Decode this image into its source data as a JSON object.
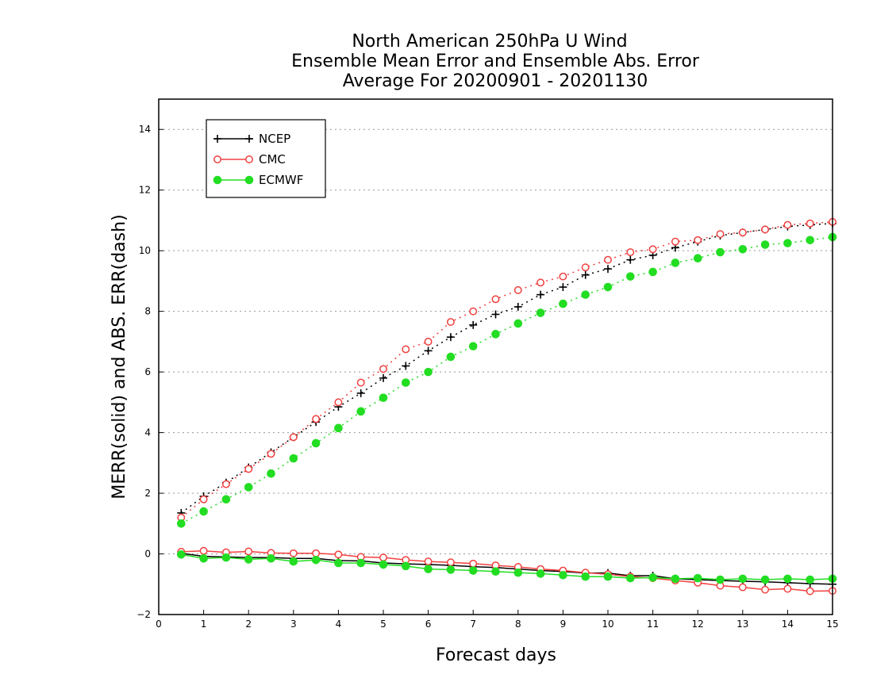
{
  "chart_data": {
    "type": "line",
    "title": [
      "North American 250hPa U Wind",
      "Ensemble Mean Error and Ensemble Abs. Error",
      "Average For 20200901 - 20201130"
    ],
    "xlabel": "Forecast days",
    "ylabel": "MERR(solid) and ABS. ERR(dash)",
    "xlim": [
      0,
      15
    ],
    "ylim": [
      -2,
      15
    ],
    "xticks": [
      0,
      1,
      2,
      3,
      4,
      5,
      6,
      7,
      8,
      9,
      10,
      11,
      12,
      13,
      14,
      15
    ],
    "yticks": [
      -2,
      0,
      2,
      4,
      6,
      8,
      10,
      12,
      14
    ],
    "grid": "horizontal dotted",
    "legend_position": "top-left",
    "x": [
      0.5,
      1,
      1.5,
      2,
      2.5,
      3,
      3.5,
      4,
      4.5,
      5,
      5.5,
      6,
      6.5,
      7,
      7.5,
      8,
      8.5,
      9,
      9.5,
      10,
      10.5,
      11,
      11.5,
      12,
      12.5,
      13,
      13.5,
      14,
      14.5,
      15
    ],
    "series": [
      {
        "name": "NCEP",
        "color": "#000000",
        "marker": "plus",
        "abs_err": [
          1.35,
          1.9,
          2.35,
          2.85,
          3.35,
          3.85,
          4.35,
          4.85,
          5.3,
          5.8,
          6.2,
          6.7,
          7.15,
          7.55,
          7.9,
          8.15,
          8.55,
          8.8,
          9.2,
          9.4,
          9.7,
          9.85,
          10.1,
          10.3,
          10.5,
          10.6,
          10.7,
          10.8,
          10.85,
          10.9
        ],
        "mean_err": [
          0.02,
          -0.08,
          -0.1,
          -0.12,
          -0.12,
          -0.15,
          -0.15,
          -0.22,
          -0.23,
          -0.3,
          -0.33,
          -0.35,
          -0.38,
          -0.42,
          -0.45,
          -0.5,
          -0.55,
          -0.58,
          -0.63,
          -0.63,
          -0.72,
          -0.72,
          -0.82,
          -0.85,
          -0.88,
          -0.9,
          -0.92,
          -0.95,
          -0.98,
          -1.0
        ]
      },
      {
        "name": "CMC",
        "color": "#f04040",
        "marker": "circle-open",
        "abs_err": [
          1.2,
          1.8,
          2.3,
          2.8,
          3.3,
          3.85,
          4.45,
          5.0,
          5.65,
          6.1,
          6.75,
          7.0,
          7.65,
          8.0,
          8.4,
          8.7,
          8.95,
          9.15,
          9.45,
          9.7,
          9.95,
          10.05,
          10.3,
          10.35,
          10.55,
          10.6,
          10.7,
          10.85,
          10.9,
          10.95
        ],
        "mean_err": [
          0.07,
          0.1,
          0.05,
          0.08,
          0.03,
          0.02,
          0.02,
          -0.02,
          -0.1,
          -0.12,
          -0.2,
          -0.25,
          -0.28,
          -0.32,
          -0.38,
          -0.43,
          -0.5,
          -0.55,
          -0.62,
          -0.67,
          -0.75,
          -0.8,
          -0.88,
          -0.95,
          -1.05,
          -1.1,
          -1.18,
          -1.15,
          -1.23,
          -1.22
        ]
      },
      {
        "name": "ECMWF",
        "color": "#22dd22",
        "marker": "circle-filled",
        "abs_err": [
          1.0,
          1.4,
          1.8,
          2.2,
          2.65,
          3.15,
          3.65,
          4.15,
          4.7,
          5.15,
          5.65,
          6.0,
          6.5,
          6.85,
          7.25,
          7.6,
          7.95,
          8.25,
          8.55,
          8.8,
          9.15,
          9.3,
          9.6,
          9.75,
          9.95,
          10.05,
          10.2,
          10.25,
          10.35,
          10.45
        ],
        "mean_err": [
          -0.02,
          -0.15,
          -0.12,
          -0.18,
          -0.15,
          -0.25,
          -0.2,
          -0.3,
          -0.3,
          -0.35,
          -0.4,
          -0.5,
          -0.52,
          -0.55,
          -0.58,
          -0.62,
          -0.65,
          -0.7,
          -0.75,
          -0.75,
          -0.8,
          -0.78,
          -0.82,
          -0.8,
          -0.85,
          -0.82,
          -0.85,
          -0.82,
          -0.85,
          -0.82
        ]
      }
    ]
  }
}
